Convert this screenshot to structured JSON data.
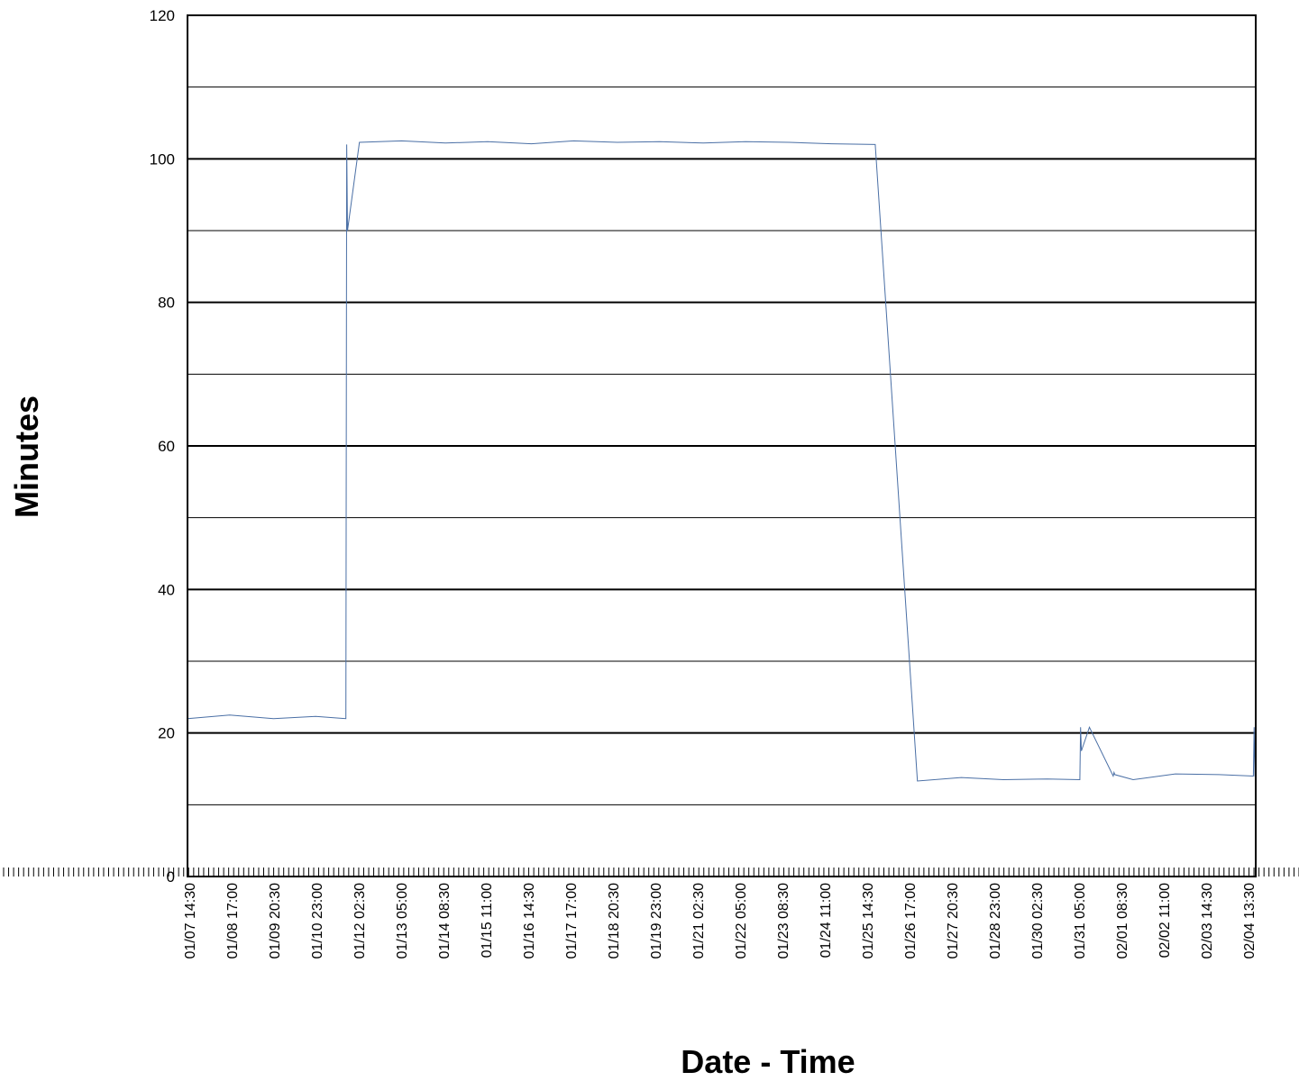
{
  "chart_data": {
    "type": "line",
    "title": "",
    "xlabel": "Date - Time",
    "ylabel": "Minutes",
    "ylim": [
      0,
      120
    ],
    "y_ticks": [
      0,
      20,
      40,
      60,
      80,
      100,
      120
    ],
    "grid": true,
    "series_color": "#4a6fa5",
    "x_ticks": [
      "01/07 14:30",
      "01/08 17:00",
      "01/09 20:30",
      "01/10 23:00",
      "01/12 02:30",
      "01/13 05:00",
      "01/14 08:30",
      "01/15 11:00",
      "01/16 14:30",
      "01/17 17:00",
      "01/18 20:30",
      "01/19 23:00",
      "01/21 02:30",
      "01/22 05:00",
      "01/23 08:30",
      "01/24 11:00",
      "01/25 14:30",
      "01/26 17:00",
      "01/27 20:30",
      "01/28 23:00",
      "01/30 02:30",
      "01/31 05:00",
      "02/01 08:30",
      "02/02 11:00",
      "02/03 14:30",
      "02/04 13:30"
    ],
    "series": [
      {
        "x": [
          "01/07 14:30",
          "01/08 17:00",
          "01/09 20:30",
          "01/10 23:00",
          "01/11 18:00",
          "01/11 18:30",
          "01/11 19:00",
          "01/12 02:30",
          "01/13 05:00",
          "01/14 08:30",
          "01/15 11:00",
          "01/16 14:30",
          "01/17 17:00",
          "01/18 20:30",
          "01/19 23:00",
          "01/21 02:30",
          "01/22 05:00",
          "01/23 08:30",
          "01/24 11:00",
          "01/25 14:30",
          "01/26 17:00",
          "01/27 20:30",
          "01/28 23:00",
          "01/30 02:30",
          "01/30 23:00",
          "01/30 23:30",
          "01/31 00:00",
          "01/31 05:00",
          "01/31 20:00",
          "01/31 20:30",
          "01/31 21:00",
          "02/01 08:30",
          "02/02 11:00",
          "02/03 14:30",
          "02/04 12:00",
          "02/04 12:30",
          "02/04 13:00",
          "02/04 13:30"
        ],
        "y": [
          22,
          22.5,
          22,
          22.3,
          22,
          102,
          90,
          102.3,
          102.5,
          102.2,
          102.4,
          102.1,
          102.5,
          102.3,
          102.4,
          102.2,
          102.4,
          102.3,
          102.1,
          102,
          13.3,
          13.8,
          13.5,
          13.6,
          13.5,
          20.8,
          17.5,
          20.8,
          14,
          14.5,
          14.2,
          13.5,
          14.3,
          14.2,
          14,
          20.8,
          14,
          13.8
        ]
      }
    ]
  }
}
